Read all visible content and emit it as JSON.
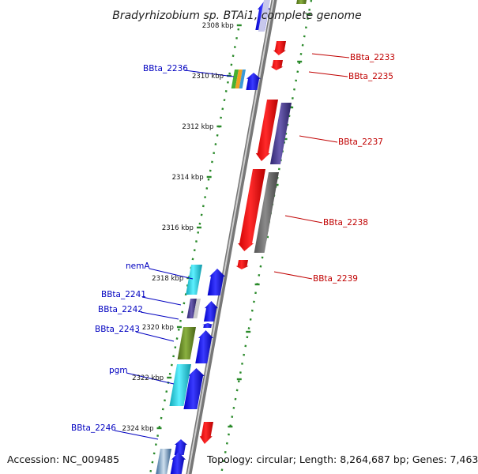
{
  "title": "Bradyrhizobium sp. BTAi1, complete genome",
  "footer": {
    "accession": "Accession: NC_009485",
    "topology": "Topology: circular; Length: 8,264,687 bp; Genes: 7,463"
  },
  "ticks": [
    "2308 kbp",
    "2310 kbp",
    "2312 kbp",
    "2314 kbp",
    "2316 kbp",
    "2318 kbp",
    "2320 kbp",
    "2322 kbp",
    "2324 kbp"
  ],
  "labels_left": [
    "BBta_2236",
    "nemA",
    "BBta_2241",
    "BBta_2242",
    "BBta_2243",
    "pgm",
    "BBta_2246"
  ],
  "labels_right": [
    "BBta_2233",
    "BBta_2235",
    "BBta_2237",
    "BBta_2238",
    "BBta_2239"
  ],
  "colors": {
    "forward": "#0a0ae6",
    "reverse": "#ee0000",
    "gray": "#6e6e6e",
    "purple": "#4a3e8c",
    "cyan": "#18c8d8",
    "olive": "#6a8a28",
    "orange": "#f0a020",
    "green": "#48b030",
    "tick": "#2a8a2a"
  }
}
